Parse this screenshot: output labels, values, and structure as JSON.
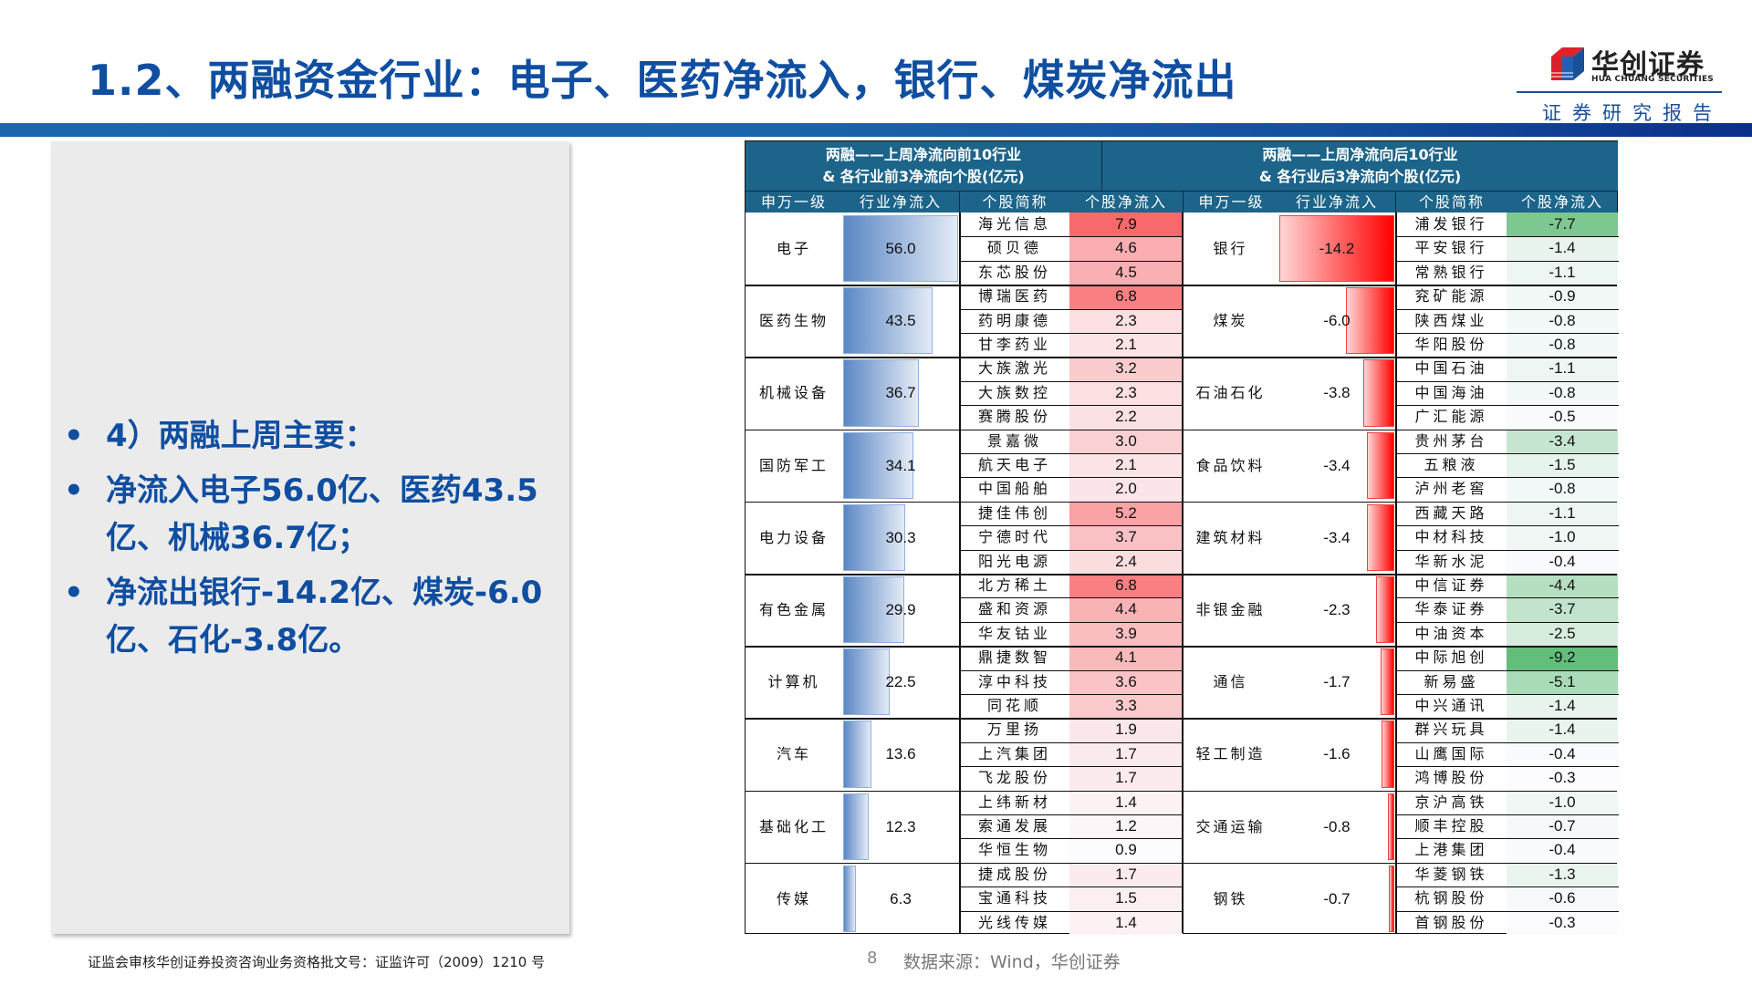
{
  "header": {
    "title": "1.2、两融资金行业：电子、医药净流入，银行、煤炭净流出",
    "logo_cn": "华创证券",
    "logo_en": "HUA CHUANG SECURITIES",
    "report_tag": "证券研究报告"
  },
  "panel": {
    "bullets": [
      "4）两融上周主要：",
      "净流入电子56.0亿、医药43.5亿、机械36.7亿；",
      "净流出银行-14.2亿、煤炭-6.0亿、石化-3.8亿。"
    ]
  },
  "table": {
    "left_title_line1": "两融——上周净流向前10行业",
    "left_title_line2": "& 各行业前3净流向个股(亿元)",
    "right_title_line1": "两融——上周净流向后10行业",
    "right_title_line2": "& 各行业后3净流向个股(亿元)",
    "columns": [
      "申万一级",
      "行业净流入",
      "个股简称",
      "个股净流入",
      "申万一级",
      "行业净流入",
      "个股简称",
      "个股净流入"
    ],
    "colors": {
      "header_bg": "#1c6489",
      "inflow_bar": "#5b87c5",
      "outflow_bar": "#ff0000",
      "stock_positive_max": "#f8696b",
      "stock_negative_max": "#63be7b"
    },
    "top": [
      {
        "industry": "电子",
        "flow": "56.0",
        "stocks": [
          [
            "海光信息",
            "7.9"
          ],
          [
            "硕贝德",
            "4.6"
          ],
          [
            "东芯股份",
            "4.5"
          ]
        ]
      },
      {
        "industry": "医药生物",
        "flow": "43.5",
        "stocks": [
          [
            "博瑞医药",
            "6.8"
          ],
          [
            "药明康德",
            "2.3"
          ],
          [
            "甘李药业",
            "2.1"
          ]
        ]
      },
      {
        "industry": "机械设备",
        "flow": "36.7",
        "stocks": [
          [
            "大族激光",
            "3.2"
          ],
          [
            "大族数控",
            "2.3"
          ],
          [
            "赛腾股份",
            "2.2"
          ]
        ]
      },
      {
        "industry": "国防军工",
        "flow": "34.1",
        "stocks": [
          [
            "景嘉微",
            "3.0"
          ],
          [
            "航天电子",
            "2.1"
          ],
          [
            "中国船舶",
            "2.0"
          ]
        ]
      },
      {
        "industry": "电力设备",
        "flow": "30.3",
        "stocks": [
          [
            "捷佳伟创",
            "5.2"
          ],
          [
            "宁德时代",
            "3.7"
          ],
          [
            "阳光电源",
            "2.4"
          ]
        ]
      },
      {
        "industry": "有色金属",
        "flow": "29.9",
        "stocks": [
          [
            "北方稀土",
            "6.8"
          ],
          [
            "盛和资源",
            "4.4"
          ],
          [
            "华友钴业",
            "3.9"
          ]
        ]
      },
      {
        "industry": "计算机",
        "flow": "22.5",
        "stocks": [
          [
            "鼎捷数智",
            "4.1"
          ],
          [
            "淳中科技",
            "3.6"
          ],
          [
            "同花顺",
            "3.3"
          ]
        ]
      },
      {
        "industry": "汽车",
        "flow": "13.6",
        "stocks": [
          [
            "万里扬",
            "1.9"
          ],
          [
            "上汽集团",
            "1.7"
          ],
          [
            "飞龙股份",
            "1.7"
          ]
        ]
      },
      {
        "industry": "基础化工",
        "flow": "12.3",
        "stocks": [
          [
            "上纬新材",
            "1.4"
          ],
          [
            "索通发展",
            "1.2"
          ],
          [
            "华恒生物",
            "0.9"
          ]
        ]
      },
      {
        "industry": "传媒",
        "flow": "6.3",
        "stocks": [
          [
            "捷成股份",
            "1.7"
          ],
          [
            "宝通科技",
            "1.5"
          ],
          [
            "光线传媒",
            "1.4"
          ]
        ]
      }
    ],
    "bottom": [
      {
        "industry": "银行",
        "flow": "-14.2",
        "stocks": [
          [
            "浦发银行",
            "-7.7"
          ],
          [
            "平安银行",
            "-1.4"
          ],
          [
            "常熟银行",
            "-1.1"
          ]
        ]
      },
      {
        "industry": "煤炭",
        "flow": "-6.0",
        "stocks": [
          [
            "兖矿能源",
            "-0.9"
          ],
          [
            "陕西煤业",
            "-0.8"
          ],
          [
            "华阳股份",
            "-0.8"
          ]
        ]
      },
      {
        "industry": "石油石化",
        "flow": "-3.8",
        "stocks": [
          [
            "中国石油",
            "-1.1"
          ],
          [
            "中国海油",
            "-0.8"
          ],
          [
            "广汇能源",
            "-0.5"
          ]
        ]
      },
      {
        "industry": "食品饮料",
        "flow": "-3.4",
        "stocks": [
          [
            "贵州茅台",
            "-3.4"
          ],
          [
            "五粮液",
            "-1.5"
          ],
          [
            "泸州老窖",
            "-0.8"
          ]
        ]
      },
      {
        "industry": "建筑材料",
        "flow": "-3.4",
        "stocks": [
          [
            "西藏天路",
            "-1.1"
          ],
          [
            "中材科技",
            "-1.0"
          ],
          [
            "华新水泥",
            "-0.4"
          ]
        ]
      },
      {
        "industry": "非银金融",
        "flow": "-2.3",
        "stocks": [
          [
            "中信证券",
            "-4.4"
          ],
          [
            "华泰证券",
            "-3.7"
          ],
          [
            "中油资本",
            "-2.5"
          ]
        ]
      },
      {
        "industry": "通信",
        "flow": "-1.7",
        "stocks": [
          [
            "中际旭创",
            "-9.2"
          ],
          [
            "新易盛",
            "-5.1"
          ],
          [
            "中兴通讯",
            "-1.4"
          ]
        ]
      },
      {
        "industry": "轻工制造",
        "flow": "-1.6",
        "stocks": [
          [
            "群兴玩具",
            "-1.4"
          ],
          [
            "山鹰国际",
            "-0.4"
          ],
          [
            "鸿博股份",
            "-0.3"
          ]
        ]
      },
      {
        "industry": "交通运输",
        "flow": "-0.8",
        "stocks": [
          [
            "京沪高铁",
            "-1.0"
          ],
          [
            "顺丰控股",
            "-0.7"
          ],
          [
            "上港集团",
            "-0.4"
          ]
        ]
      },
      {
        "industry": "钢铁",
        "flow": "-0.7",
        "stocks": [
          [
            "华菱钢铁",
            "-1.3"
          ],
          [
            "杭钢股份",
            "-0.6"
          ],
          [
            "首钢股份",
            "-0.3"
          ]
        ]
      }
    ]
  },
  "footer": {
    "license": "证监会审核华创证券投资咨询业务资格批文号：证监许可（2009）1210 号",
    "page_number": "8",
    "source": "数据来源：Wind，华创证券"
  }
}
